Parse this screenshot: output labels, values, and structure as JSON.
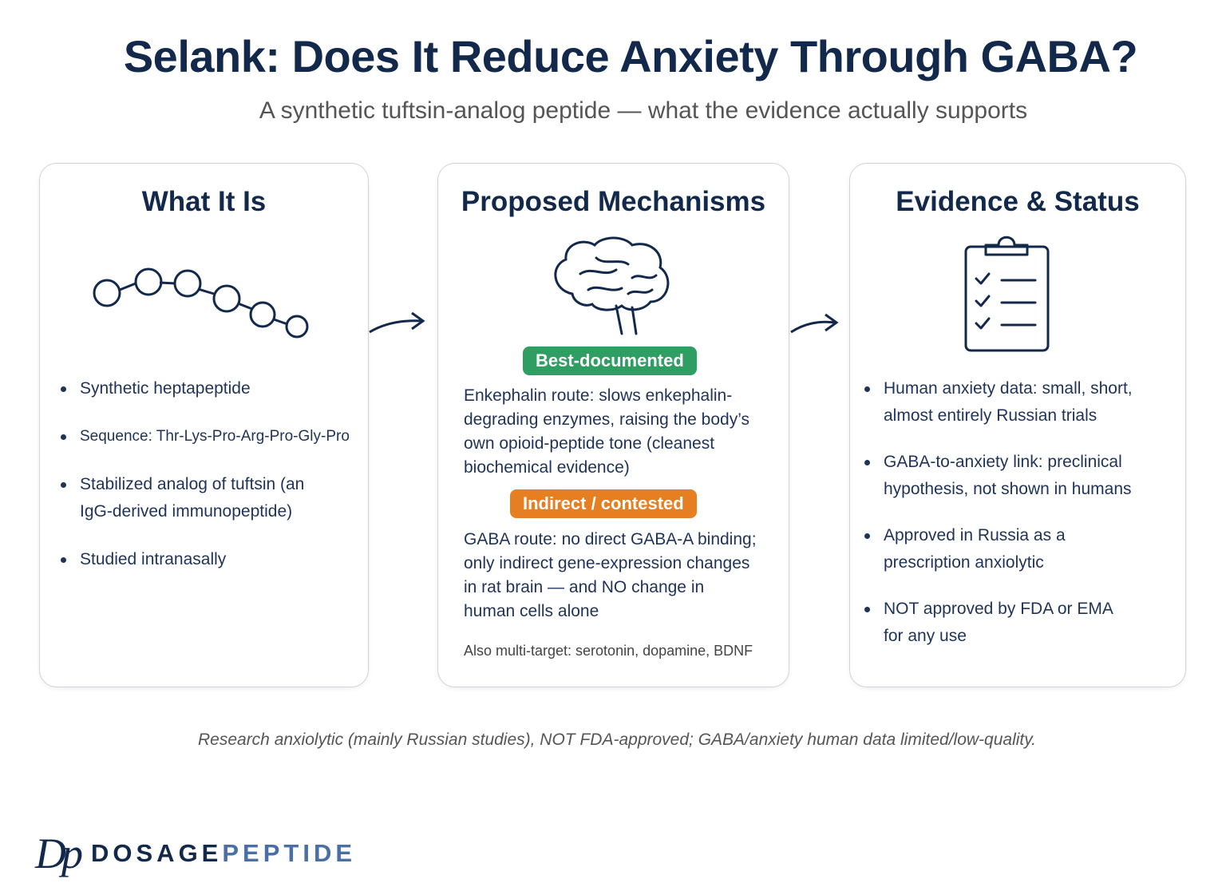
{
  "header": {
    "title": "Selank: Does It Reduce Anxiety Through GABA?",
    "subtitle": "A synthetic tuftsin-analog peptide — what the evidence actually supports"
  },
  "cards": [
    {
      "title": "What It Is",
      "bullets": [
        "Synthetic heptapeptide",
        "Sequence: Thr-Lys-Pro-Arg-Pro-Gly-Pro",
        "Stabilized analog of tuftsin (an IgG-derived immunopeptide)",
        "Studied intranasally"
      ]
    },
    {
      "title": "Proposed Mechanisms",
      "sections": [
        {
          "badge": "Best-documented",
          "text": "Enkephalin route: slows enkephalin-degrading enzymes, raising the body’s own opioid-peptide tone (cleanest biochemical evidence)"
        },
        {
          "badge": "Indirect / contested",
          "text": "GABA route: no direct GABA-A binding; only indirect gene-expression changes in rat brain — and NO change in human cells alone"
        }
      ],
      "note": "Also multi-target: serotonin, dopamine, BDNF"
    },
    {
      "title": "Evidence & Status",
      "bullets": [
        "Human anxiety data: small, short, almost entirely Russian trials",
        "GABA-to-anxiety link: preclinical hypothesis, not shown in humans",
        "Approved in Russia as a prescription anxiolytic",
        "NOT approved by FDA or EMA for any use"
      ]
    }
  ],
  "footer": "Research anxiolytic (mainly Russian studies), NOT FDA-approved; GABA/anxiety human data limited/low-quality.",
  "brand": {
    "mark": "Dp",
    "name_dark": "DOSAGE",
    "name_light": "PEPTIDE"
  }
}
